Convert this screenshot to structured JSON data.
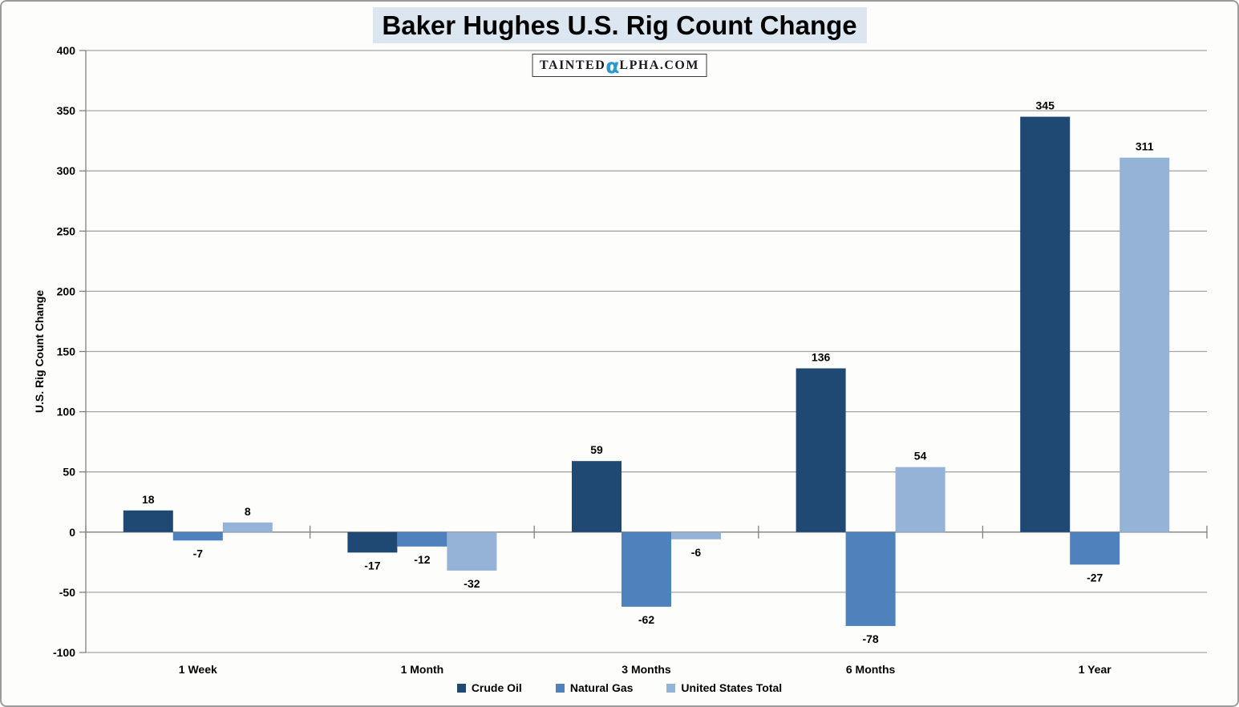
{
  "title_highlight_color": "#DCE6F1",
  "logo": {
    "left": "TAINTED",
    "alpha": "α",
    "right": "LPHA.COM",
    "alpha_color": "#2E96D1"
  },
  "chart_data": {
    "type": "bar",
    "title": "Baker Hughes U.S. Rig Count Change",
    "ylabel": "U.S. Rig Count Change",
    "xlabel": "",
    "categories": [
      "1 Week",
      "1 Month",
      "3 Months",
      "6 Months",
      "1 Year"
    ],
    "series": [
      {
        "name": "Crude Oil",
        "color": "#1F4873",
        "values": [
          18,
          -17,
          59,
          136,
          345
        ]
      },
      {
        "name": "Natural Gas",
        "color": "#4F81BD",
        "values": [
          -7,
          -12,
          -62,
          -78,
          -27
        ]
      },
      {
        "name": "United States Total",
        "color": "#95B3D7",
        "values": [
          8,
          -32,
          -6,
          54,
          311
        ]
      }
    ],
    "ylim": [
      -100,
      400
    ],
    "ytick_interval": 50,
    "yticks": [
      400,
      350,
      300,
      250,
      200,
      150,
      100,
      50,
      0,
      -50,
      -100
    ],
    "grid": true,
    "data_labels": true,
    "legend_position": "bottom",
    "gridline_color": "#A6A6A6",
    "axis_color": "#808080"
  }
}
